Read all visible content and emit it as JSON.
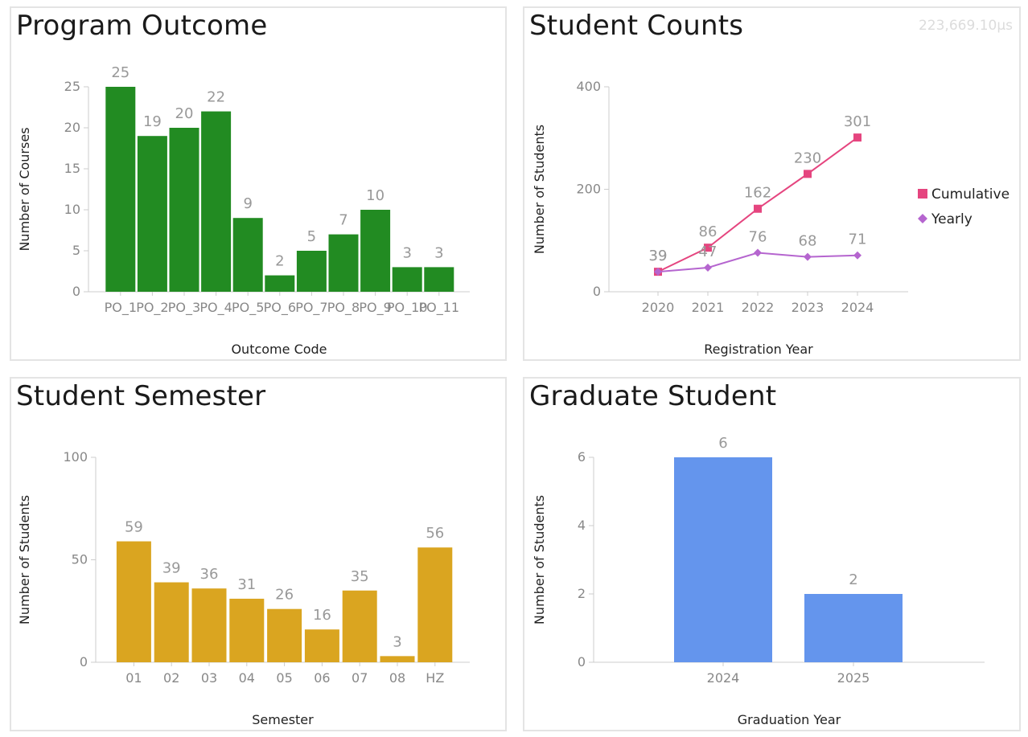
{
  "timer": "223,669.10µs",
  "charts": [
    {
      "title": "Program Outcome",
      "type": "bar",
      "xlabel": "Outcome Code",
      "ylabel": "Number of Courses",
      "color": "#228B22",
      "ymax": 25,
      "yticks": [
        0,
        5,
        10,
        15,
        20,
        25
      ],
      "categories": [
        "PO_1",
        "PO_2",
        "PO_3",
        "PO_4",
        "PO_5",
        "PO_6",
        "PO_7",
        "PO_8",
        "PO_9",
        "PO_10",
        "PO_11"
      ],
      "values": [
        25,
        19,
        20,
        22,
        9,
        2,
        5,
        7,
        10,
        3,
        3
      ]
    },
    {
      "title": "Student Counts",
      "type": "line",
      "xlabel": "Registration Year",
      "ylabel": "Number of Students",
      "ymax": 400,
      "yticks": [
        0,
        200,
        400
      ],
      "categories": [
        "2020",
        "2021",
        "2022",
        "2023",
        "2024"
      ],
      "legend_position": "right",
      "series": [
        {
          "name": "Cumulative",
          "color": "#E5457F",
          "marker": "square",
          "values": [
            39,
            86,
            162,
            230,
            301
          ]
        },
        {
          "name": "Yearly",
          "color": "#B565CF",
          "marker": "diamond",
          "values": [
            39,
            47,
            76,
            68,
            71
          ]
        }
      ]
    },
    {
      "title": "Student Semester",
      "type": "bar",
      "xlabel": "Semester",
      "ylabel": "Number of Students",
      "color": "#DAA520",
      "ymax": 100,
      "yticks": [
        0,
        50,
        100
      ],
      "categories": [
        "01",
        "02",
        "03",
        "04",
        "05",
        "06",
        "07",
        "08",
        "HZ"
      ],
      "values": [
        59,
        39,
        36,
        31,
        26,
        16,
        35,
        3,
        56
      ]
    },
    {
      "title": "Graduate Student",
      "type": "bar",
      "xlabel": "Graduation Year",
      "ylabel": "Number of Students",
      "color": "#6495ED",
      "ymax": 6,
      "yticks": [
        0,
        2,
        4,
        6
      ],
      "categories": [
        "2024",
        "2025"
      ],
      "values": [
        6,
        2
      ]
    }
  ]
}
